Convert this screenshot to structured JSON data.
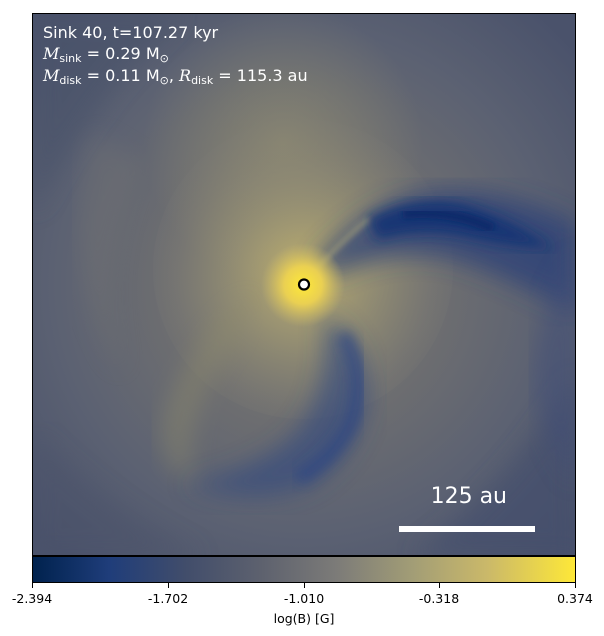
{
  "panel": {
    "title": "Sink 40, t=107.27 kyr",
    "m_sink_sym": "M",
    "m_sink_sub": "sink",
    "m_sink_val": " = 0.29 M",
    "m_sink_unit": "⊙",
    "m_disk_sym": "M",
    "m_disk_sub": "disk",
    "m_disk_val": " = 0.11 M",
    "m_disk_unit": "⊙",
    "r_disk_sep": ", ",
    "r_disk_sym": "R",
    "r_disk_sub": "disk",
    "r_disk_val": " = 115.3 au"
  },
  "scale": {
    "label": "125 au"
  },
  "colorbar": {
    "ticks": [
      "-2.394",
      "-1.702",
      "-1.010",
      "-0.318",
      "0.374"
    ],
    "label": "log(B) [G]",
    "min": -2.394,
    "max": 0.374,
    "colormap": "cividis",
    "colors": [
      "#00224e",
      "#414d6b",
      "#7c7b78",
      "#cbb969",
      "#fee838"
    ]
  }
}
